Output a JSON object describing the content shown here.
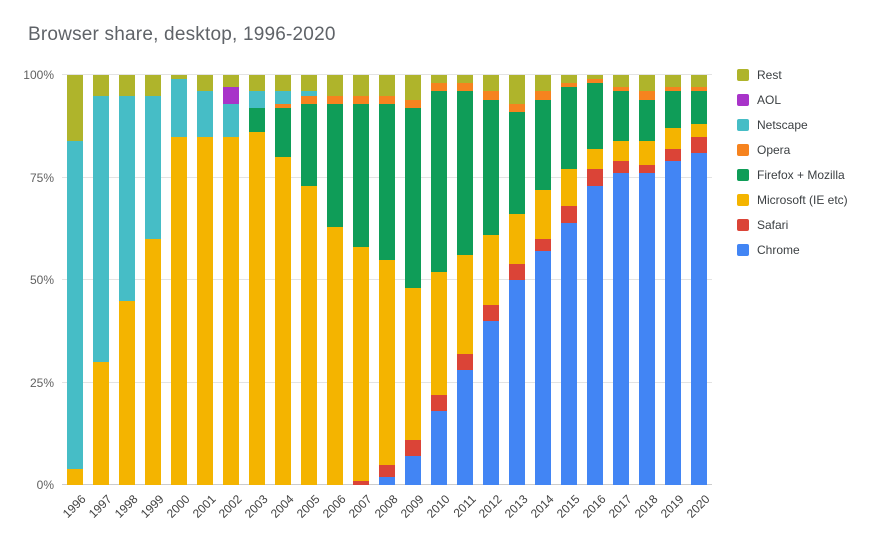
{
  "chart_data": {
    "type": "bar",
    "stacked": true,
    "title": "Browser share, desktop, 1996-2020",
    "xlabel": "",
    "ylabel": "",
    "ylim": [
      0,
      100
    ],
    "yticks": [
      "0%",
      "25%",
      "50%",
      "75%",
      "100%"
    ],
    "grid": true,
    "legend_position": "right",
    "categories": [
      "1996",
      "1997",
      "1998",
      "1999",
      "2000",
      "2001",
      "2002",
      "2003",
      "2004",
      "2005",
      "2006",
      "2007",
      "2008",
      "2009",
      "2010",
      "2011",
      "2012",
      "2013",
      "2014",
      "2015",
      "2016",
      "2017",
      "2018",
      "2019",
      "2020"
    ],
    "series": [
      {
        "name": "Chrome",
        "color": "#4285F4",
        "values": [
          0,
          0,
          0,
          0,
          0,
          0,
          0,
          0,
          0,
          0,
          0,
          0,
          2,
          7,
          18,
          28,
          40,
          50,
          57,
          64,
          73,
          76,
          76,
          79,
          81
        ]
      },
      {
        "name": "Safari",
        "color": "#DB4437",
        "values": [
          0,
          0,
          0,
          0,
          0,
          0,
          0,
          0,
          0,
          0,
          0,
          1,
          3,
          4,
          4,
          4,
          4,
          4,
          3,
          4,
          4,
          3,
          2,
          3,
          4
        ]
      },
      {
        "name": "Microsoft (IE etc)",
        "color": "#F4B400",
        "values": [
          4,
          30,
          45,
          60,
          85,
          85,
          85,
          86,
          80,
          73,
          63,
          57,
          50,
          37,
          30,
          24,
          17,
          12,
          12,
          9,
          5,
          5,
          6,
          5,
          3
        ]
      },
      {
        "name": "Firefox + Mozilla",
        "color": "#0F9D58",
        "values": [
          0,
          0,
          0,
          0,
          0,
          0,
          0,
          6,
          12,
          20,
          30,
          35,
          38,
          44,
          44,
          40,
          33,
          25,
          22,
          20,
          16,
          12,
          10,
          9,
          8
        ]
      },
      {
        "name": "Opera",
        "color": "#F6831F",
        "values": [
          0,
          0,
          0,
          0,
          0,
          0,
          0,
          0,
          1,
          2,
          2,
          2,
          2,
          2,
          2,
          2,
          2,
          2,
          2,
          1,
          1,
          1,
          2,
          1,
          1
        ]
      },
      {
        "name": "Netscape",
        "color": "#46BDC6",
        "values": [
          80,
          65,
          50,
          35,
          14,
          11,
          8,
          4,
          3,
          1,
          0,
          0,
          0,
          0,
          0,
          0,
          0,
          0,
          0,
          0,
          0,
          0,
          0,
          0,
          0
        ]
      },
      {
        "name": "AOL",
        "color": "#A834C9",
        "values": [
          0,
          0,
          0,
          0,
          0,
          0,
          4,
          0,
          0,
          0,
          0,
          0,
          0,
          0,
          0,
          0,
          0,
          0,
          0,
          0,
          0,
          0,
          0,
          0,
          0
        ]
      },
      {
        "name": "Rest",
        "color": "#AFB42B",
        "values": [
          16,
          5,
          5,
          5,
          1,
          4,
          3,
          4,
          4,
          4,
          5,
          5,
          5,
          6,
          2,
          2,
          4,
          7,
          4,
          2,
          1,
          3,
          4,
          3,
          3
        ]
      }
    ]
  }
}
